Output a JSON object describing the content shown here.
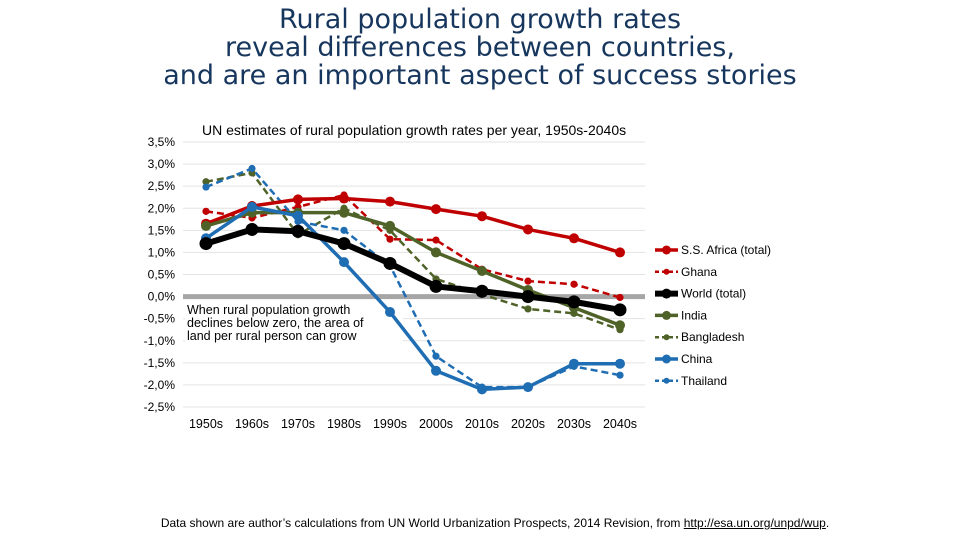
{
  "title_lines": [
    "Rural population growth rates",
    "reveal differences between countries,",
    "and are an important aspect of success stories"
  ],
  "source": {
    "text": "Data shown are author’s calculations from UN World Urbanization Prospects, 2014 Revision, from ",
    "link": "http://esa.un.org/unpd/wup",
    "end": "."
  },
  "chart_data": {
    "type": "line",
    "title": "UN estimates of rural population growth rates per year, 1950s-2040s",
    "annotation": [
      "When rural population growth",
      "declines below zero, the area of",
      "land per rural person can grow"
    ],
    "categories": [
      "1950s",
      "1960s",
      "1970s",
      "1980s",
      "1990s",
      "2000s",
      "2010s",
      "2020s",
      "2030s",
      "2040s"
    ],
    "ylim": [
      -2.5,
      3.5
    ],
    "yticks": [
      "3,5%",
      "3,0%",
      "2,5%",
      "2,0%",
      "1,5%",
      "1,0%",
      "0,5%",
      "0,0%",
      "-0,5%",
      "-1,0%",
      "-1,5%",
      "-2,0%",
      "-2,5%"
    ],
    "grid": true,
    "legend_position": "right",
    "series": [
      {
        "name": "S.S. Africa (total)",
        "color": "#c00000",
        "style": "solid",
        "values": [
          1.65,
          2.05,
          2.2,
          2.22,
          2.15,
          1.98,
          1.82,
          1.52,
          1.32,
          1.0
        ]
      },
      {
        "name": "Ghana",
        "color": "#c00000",
        "style": "dashed",
        "values": [
          1.93,
          1.78,
          2.03,
          2.3,
          1.3,
          1.28,
          0.62,
          0.35,
          0.28,
          -0.02
        ]
      },
      {
        "name": "World (total)",
        "color": "#000000",
        "style": "solid",
        "values": [
          1.2,
          1.52,
          1.48,
          1.2,
          0.75,
          0.23,
          0.12,
          0.0,
          -0.12,
          -0.3
        ]
      },
      {
        "name": "India",
        "color": "#4f6228",
        "style": "solid",
        "values": [
          1.6,
          1.9,
          1.9,
          1.9,
          1.6,
          1.0,
          0.58,
          0.15,
          -0.25,
          -0.65
        ]
      },
      {
        "name": "Bangladesh",
        "color": "#4f6228",
        "style": "dashed",
        "values": [
          2.6,
          2.8,
          1.4,
          2.0,
          1.5,
          0.4,
          0.05,
          -0.28,
          -0.38,
          -0.75
        ]
      },
      {
        "name": "China",
        "color": "#1f6db3",
        "style": "solid",
        "values": [
          1.32,
          2.03,
          1.83,
          0.78,
          -0.35,
          -1.68,
          -2.1,
          -2.05,
          -1.52,
          -1.52
        ]
      },
      {
        "name": "Thailand",
        "color": "#1f6db3",
        "style": "dashed",
        "values": [
          2.48,
          2.9,
          1.7,
          1.5,
          0.7,
          -1.35,
          -2.05,
          -2.05,
          -1.58,
          -1.78
        ]
      }
    ]
  }
}
